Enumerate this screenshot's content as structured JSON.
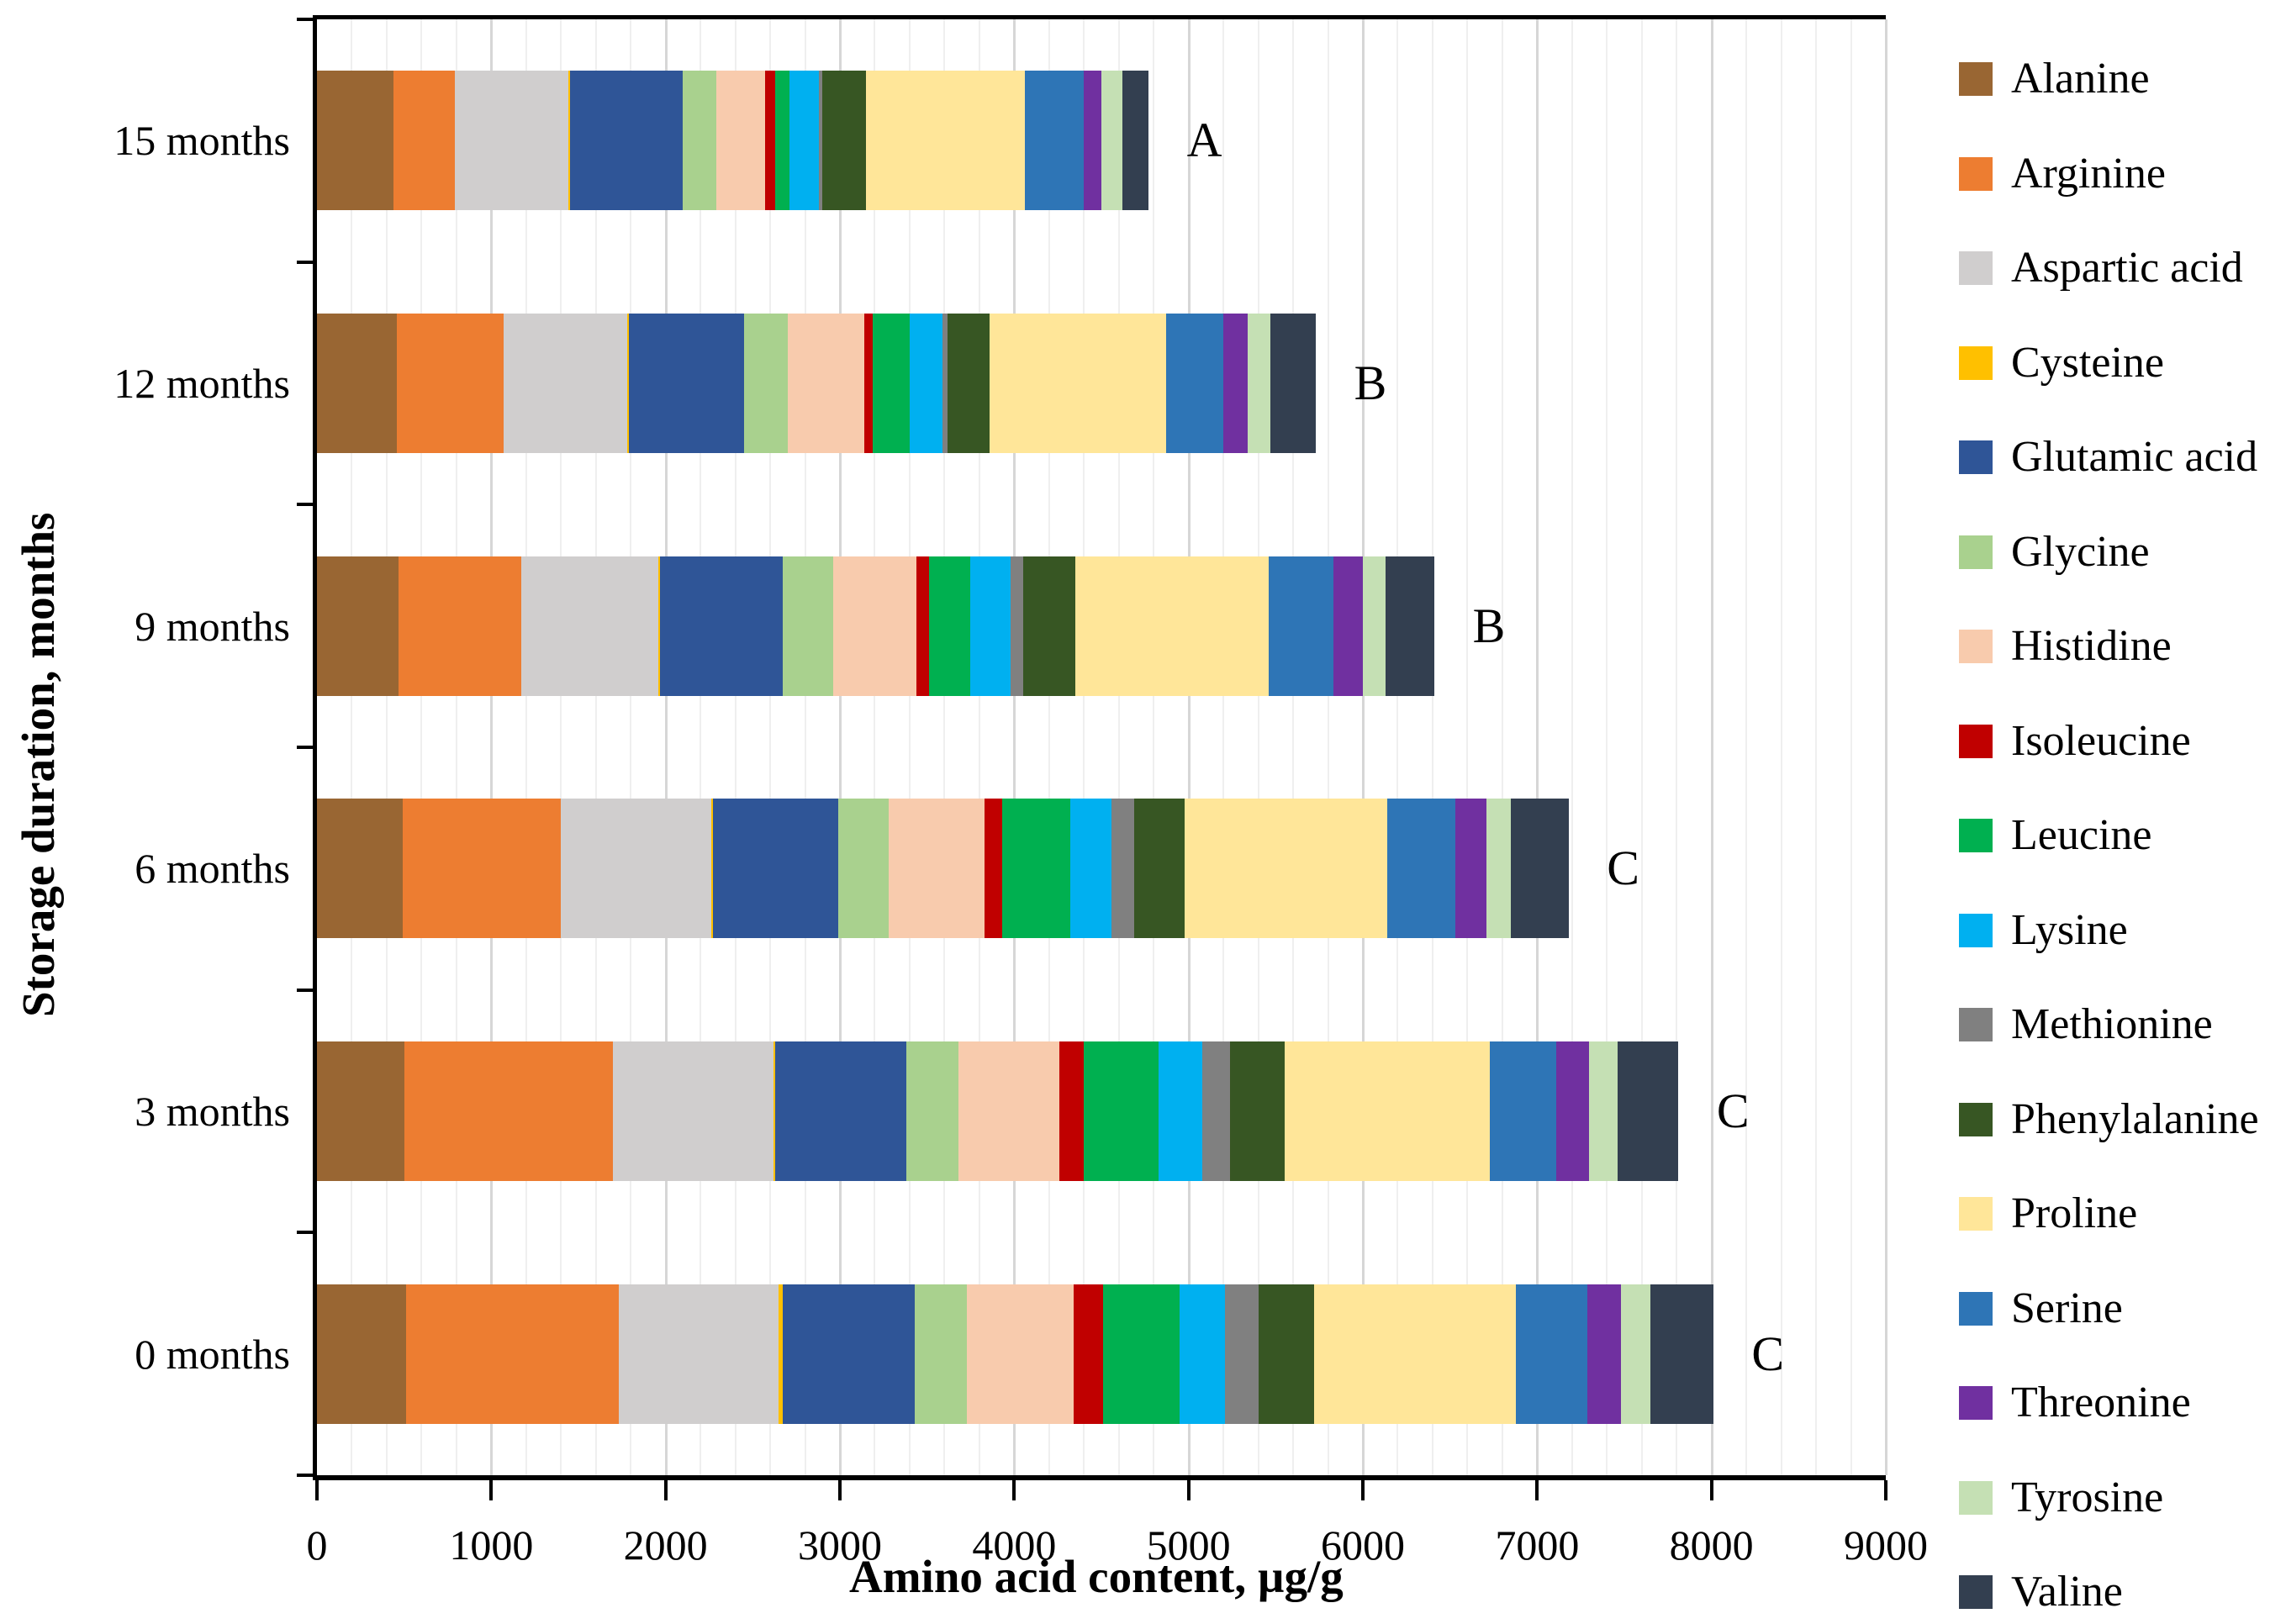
{
  "chart_data": {
    "type": "bar",
    "orientation": "horizontal",
    "stacked": true,
    "xlabel": "Amino acid content, µg/g",
    "ylabel": "Storage duration, months",
    "xlim": [
      0,
      9000
    ],
    "xticks": [
      0,
      1000,
      2000,
      3000,
      4000,
      5000,
      6000,
      7000,
      8000,
      9000
    ],
    "minor_grid_step": 200,
    "major_grid_step": 1000,
    "grid": "on",
    "legend_position": "right",
    "categories": [
      "15 months",
      "12 months",
      "9 months",
      "6 months",
      "3 months",
      "0 months"
    ],
    "bar_annotations": [
      "A",
      "B",
      "B",
      "C",
      "C",
      "C"
    ],
    "totals": [
      4770,
      5730,
      6410,
      7180,
      7810,
      8010
    ],
    "series": [
      {
        "name": "Alanine",
        "color": "#996633",
        "values": [
          440,
          460,
          470,
          490,
          500,
          510
        ]
      },
      {
        "name": "Arginine",
        "color": "#ED7D31",
        "values": [
          350,
          610,
          700,
          910,
          1200,
          1220
        ]
      },
      {
        "name": "Aspartic acid",
        "color": "#D0CECE",
        "values": [
          650,
          710,
          790,
          860,
          920,
          920
        ]
      },
      {
        "name": "Cysteine",
        "color": "#FFC000",
        "values": [
          10,
          10,
          10,
          10,
          10,
          20
        ]
      },
      {
        "name": "Glutamic acid",
        "color": "#2F5597",
        "values": [
          650,
          660,
          700,
          720,
          750,
          760
        ]
      },
      {
        "name": "Glycine",
        "color": "#A9D18E",
        "values": [
          190,
          250,
          290,
          290,
          300,
          300
        ]
      },
      {
        "name": "Histidine",
        "color": "#F8CBAD",
        "values": [
          280,
          440,
          480,
          550,
          580,
          610
        ]
      },
      {
        "name": "Isoleucine",
        "color": "#C00000",
        "values": [
          60,
          50,
          70,
          100,
          140,
          170
        ]
      },
      {
        "name": "Leucine",
        "color": "#00B050",
        "values": [
          80,
          210,
          240,
          390,
          430,
          440
        ]
      },
      {
        "name": "Lysine",
        "color": "#00B0F0",
        "values": [
          170,
          190,
          230,
          240,
          250,
          260
        ]
      },
      {
        "name": "Methionine",
        "color": "#808080",
        "values": [
          20,
          30,
          70,
          130,
          160,
          190
        ]
      },
      {
        "name": "Phenylalanine",
        "color": "#375623",
        "values": [
          250,
          240,
          300,
          290,
          310,
          320
        ]
      },
      {
        "name": "Proline",
        "color": "#FFE699",
        "values": [
          910,
          1010,
          1110,
          1160,
          1180,
          1160
        ]
      },
      {
        "name": "Serine",
        "color": "#2E75B6",
        "values": [
          340,
          330,
          370,
          390,
          380,
          410
        ]
      },
      {
        "name": "Threonine",
        "color": "#7030A0",
        "values": [
          100,
          140,
          170,
          180,
          190,
          190
        ]
      },
      {
        "name": "Tyrosine",
        "color": "#C5E0B4",
        "values": [
          120,
          130,
          130,
          140,
          160,
          170
        ]
      },
      {
        "name": "Valine",
        "color": "#333F50",
        "values": [
          150,
          260,
          280,
          330,
          350,
          360
        ]
      }
    ]
  }
}
